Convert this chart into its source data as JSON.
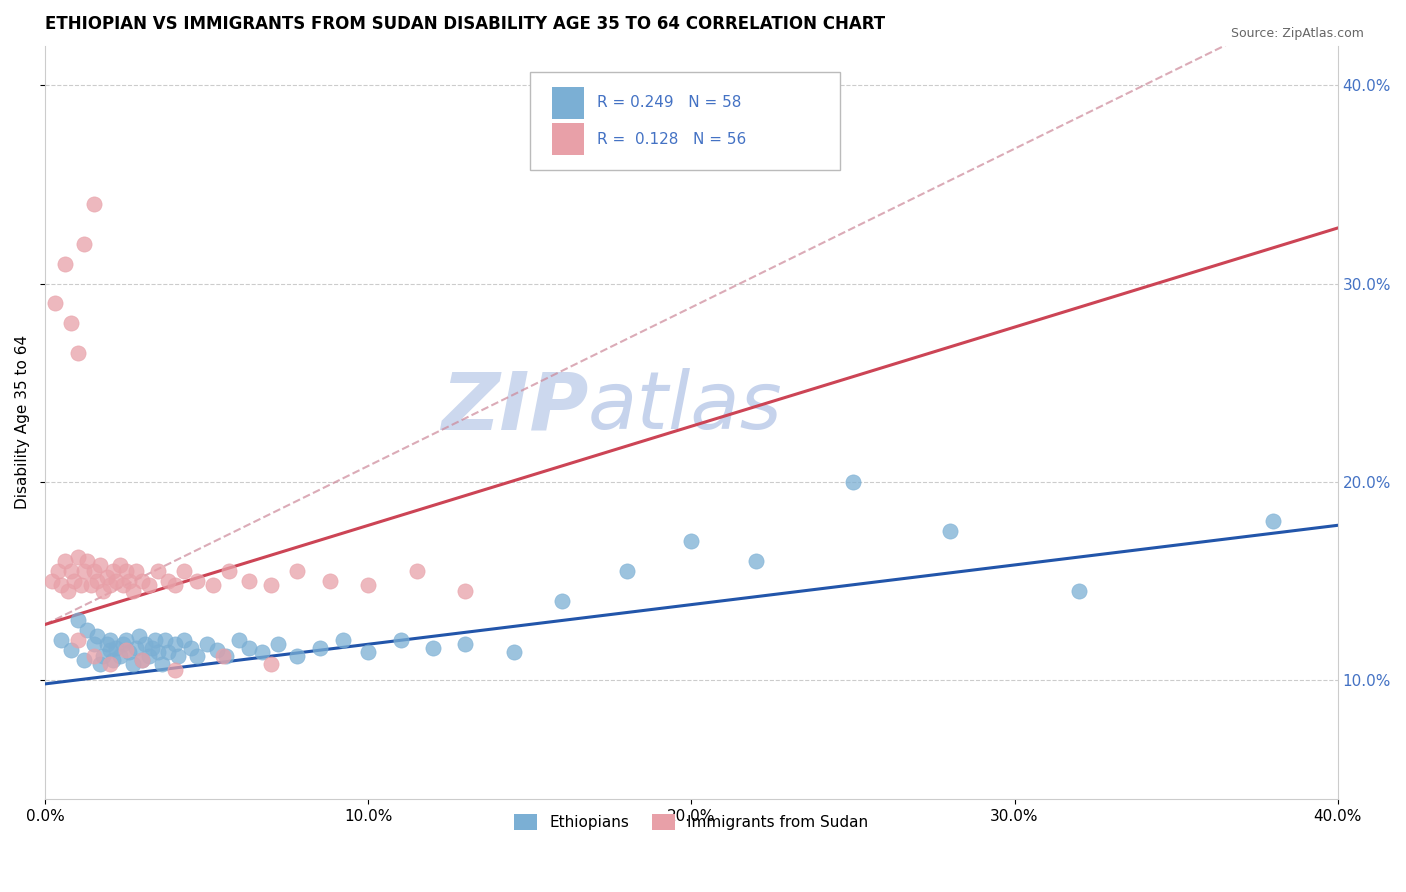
{
  "title": "ETHIOPIAN VS IMMIGRANTS FROM SUDAN DISABILITY AGE 35 TO 64 CORRELATION CHART",
  "source": "Source: ZipAtlas.com",
  "ylabel": "Disability Age 35 to 64",
  "xlim": [
    0.0,
    0.4
  ],
  "ylim": [
    0.04,
    0.42
  ],
  "xticks": [
    0.0,
    0.1,
    0.2,
    0.3,
    0.4
  ],
  "xticklabels": [
    "0.0%",
    "10.0%",
    "20.0%",
    "30.0%",
    "40.0%"
  ],
  "right_yticks": [
    0.1,
    0.2,
    0.3,
    0.4
  ],
  "right_yticklabels": [
    "10.0%",
    "20.0%",
    "30.0%",
    "40.0%"
  ],
  "blue_color": "#7bafd4",
  "pink_color": "#e8a0a8",
  "blue_line_color": "#2255aa",
  "pink_line_color": "#cc4455",
  "pink_dashed_color": "#cc8899",
  "legend_R_color": "#4472c4",
  "watermark_color": "#ccd8ee",
  "ethiopians_x": [
    0.005,
    0.008,
    0.01,
    0.012,
    0.013,
    0.015,
    0.016,
    0.017,
    0.018,
    0.019,
    0.02,
    0.02,
    0.021,
    0.022,
    0.023,
    0.024,
    0.025,
    0.026,
    0.027,
    0.028,
    0.029,
    0.03,
    0.031,
    0.032,
    0.033,
    0.034,
    0.035,
    0.036,
    0.037,
    0.038,
    0.04,
    0.041,
    0.043,
    0.045,
    0.047,
    0.05,
    0.053,
    0.056,
    0.06,
    0.063,
    0.067,
    0.072,
    0.078,
    0.085,
    0.092,
    0.1,
    0.11,
    0.12,
    0.13,
    0.145,
    0.16,
    0.18,
    0.2,
    0.22,
    0.25,
    0.28,
    0.32,
    0.38
  ],
  "ethiopians_y": [
    0.12,
    0.115,
    0.13,
    0.11,
    0.125,
    0.118,
    0.122,
    0.108,
    0.112,
    0.118,
    0.115,
    0.12,
    0.11,
    0.116,
    0.112,
    0.118,
    0.12,
    0.114,
    0.108,
    0.116,
    0.122,
    0.11,
    0.118,
    0.112,
    0.116,
    0.12,
    0.114,
    0.108,
    0.12,
    0.114,
    0.118,
    0.112,
    0.12,
    0.116,
    0.112,
    0.118,
    0.115,
    0.112,
    0.12,
    0.116,
    0.114,
    0.118,
    0.112,
    0.116,
    0.12,
    0.114,
    0.12,
    0.116,
    0.118,
    0.114,
    0.14,
    0.155,
    0.17,
    0.16,
    0.2,
    0.175,
    0.145,
    0.18
  ],
  "sudan_x": [
    0.002,
    0.004,
    0.005,
    0.006,
    0.007,
    0.008,
    0.009,
    0.01,
    0.011,
    0.012,
    0.013,
    0.014,
    0.015,
    0.016,
    0.017,
    0.018,
    0.019,
    0.02,
    0.021,
    0.022,
    0.023,
    0.024,
    0.025,
    0.026,
    0.027,
    0.028,
    0.03,
    0.032,
    0.035,
    0.038,
    0.04,
    0.043,
    0.047,
    0.052,
    0.057,
    0.063,
    0.07,
    0.078,
    0.088,
    0.1,
    0.115,
    0.13,
    0.01,
    0.015,
    0.02,
    0.025,
    0.03,
    0.04,
    0.055,
    0.07,
    0.003,
    0.006,
    0.008,
    0.01,
    0.012,
    0.015
  ],
  "sudan_y": [
    0.15,
    0.155,
    0.148,
    0.16,
    0.145,
    0.155,
    0.15,
    0.162,
    0.148,
    0.155,
    0.16,
    0.148,
    0.155,
    0.15,
    0.158,
    0.145,
    0.152,
    0.148,
    0.155,
    0.15,
    0.158,
    0.148,
    0.155,
    0.15,
    0.145,
    0.155,
    0.15,
    0.148,
    0.155,
    0.15,
    0.148,
    0.155,
    0.15,
    0.148,
    0.155,
    0.15,
    0.148,
    0.155,
    0.15,
    0.148,
    0.155,
    0.145,
    0.12,
    0.112,
    0.108,
    0.115,
    0.11,
    0.105,
    0.112,
    0.108,
    0.29,
    0.31,
    0.28,
    0.265,
    0.32,
    0.34
  ],
  "legend_entries": [
    {
      "label": "R = 0.249   N = 58",
      "color": "#7bafd4"
    },
    {
      "label": "R =  0.128   N = 56",
      "color": "#e8a0a8"
    }
  ],
  "bottom_legend": [
    {
      "label": "Ethiopians",
      "color": "#7bafd4"
    },
    {
      "label": "Immigrants from Sudan",
      "color": "#e8a0a8"
    }
  ],
  "title_fontsize": 12,
  "axis_label_fontsize": 11,
  "tick_fontsize": 11,
  "right_tick_color": "#4472c4"
}
